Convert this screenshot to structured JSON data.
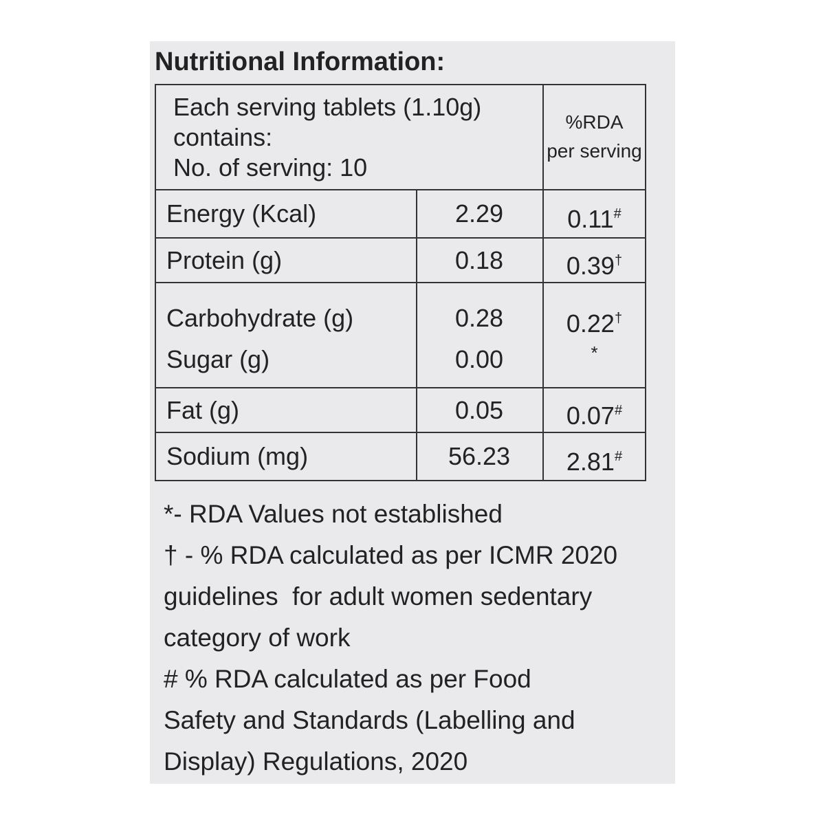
{
  "title": "Nutritional Information:",
  "table": {
    "header": {
      "serving": [
        "Each serving tablets (1.10g)",
        "contains:",
        "No. of serving: 10"
      ],
      "rda": [
        "%RDA",
        "per serving"
      ]
    },
    "rows": [
      {
        "name": "Energy (Kcal)",
        "value": "2.29",
        "rda": "0.11",
        "mark": "#"
      },
      {
        "name": "Protein (g)",
        "value": "0.18",
        "rda": "0.39",
        "mark": "†"
      },
      {
        "name": "Carbohydrate (g)",
        "value": "0.28",
        "rda": "0.22",
        "mark": "†"
      },
      {
        "name": "Sugar (g)",
        "value": "0.00",
        "rda": "*"
      },
      {
        "name": "Fat (g)",
        "value": "0.05",
        "rda": "0.07",
        "mark": "#"
      },
      {
        "name": "Sodium (mg)",
        "value": "56.23",
        "rda": "2.81",
        "mark": "#"
      }
    ]
  },
  "notes": [
    "*- RDA Values not established",
    "† - % RDA calculated as per ICMR 2020",
    "guidelines  for adult women sedentary",
    "category of work",
    "# % RDA calculated as per Food",
    "Safety and Standards (Labelling and",
    "Display) Regulations, 2020"
  ]
}
